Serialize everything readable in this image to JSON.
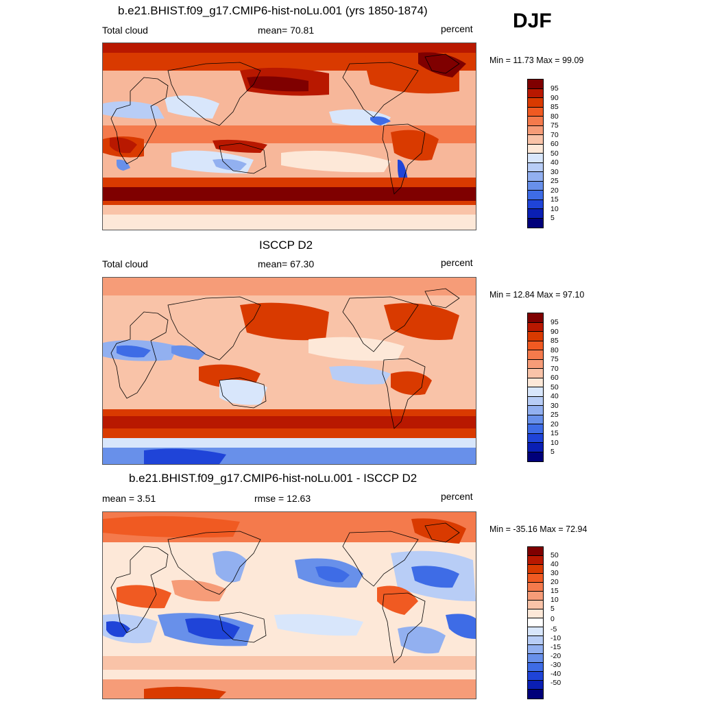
{
  "season": "DJF",
  "panels": [
    {
      "title": "b.e21.BHIST.f09_g17.CMIP6-hist-noLu.001 (yrs 1850-1874)",
      "left_label": "Total cloud",
      "center_label": "mean=  70.81",
      "units": "percent",
      "minmax": "Min =  11.73 Max =  99.09",
      "levels": [
        "95",
        "90",
        "85",
        "80",
        "75",
        "70",
        "60",
        "50",
        "40",
        "30",
        "25",
        "20",
        "15",
        "10",
        "5"
      ],
      "palette": "abs"
    },
    {
      "title": "ISCCP D2",
      "left_label": "Total cloud",
      "center_label": "mean=  67.30",
      "units": "percent",
      "minmax": "Min =  12.84 Max =  97.10",
      "levels": [
        "95",
        "90",
        "85",
        "80",
        "75",
        "70",
        "60",
        "50",
        "40",
        "30",
        "25",
        "20",
        "15",
        "10",
        "5"
      ],
      "palette": "abs"
    },
    {
      "title": "b.e21.BHIST.f09_g17.CMIP6-hist-noLu.001 - ISCCP D2",
      "left_label": "mean =   3.51",
      "center_label": "rmse =  12.63",
      "units": "percent",
      "minmax": "Min = -35.16 Max =  72.94",
      "levels": [
        "50",
        "40",
        "30",
        "20",
        "15",
        "10",
        "5",
        "0",
        "-5",
        "-10",
        "-15",
        "-20",
        "-30",
        "-40",
        "-50"
      ],
      "palette": "diff"
    }
  ],
  "colors": {
    "colorbar": [
      "#7f0000",
      "#b81800",
      "#d93a00",
      "#f05a22",
      "#f47a4c",
      "#f69c78",
      "#f9c3a8",
      "#fde8d8",
      "#ffffff",
      "#d8e6fb",
      "#b8cdf6",
      "#92b0f0",
      "#6890ea",
      "#3e6ce6",
      "#1f44d8",
      "#0a1fb4",
      "#00007a"
    ]
  }
}
